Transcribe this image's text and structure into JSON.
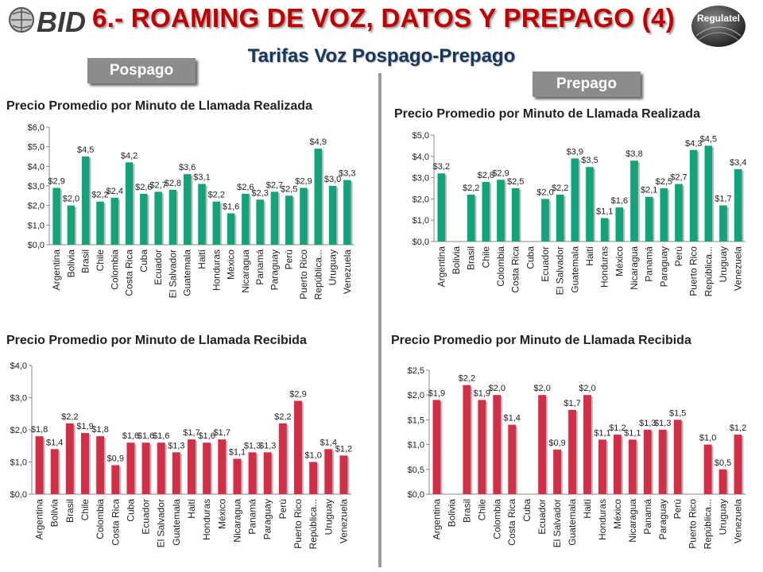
{
  "header": {
    "logo_text": "BID",
    "title": "6.- ROAMING DE VOZ, DATOS Y PREPAGO (4)",
    "subtitle": "Tarifas Voz Pospago-Prepago",
    "badge_text": "Regulatel"
  },
  "tags": {
    "pospago": "Pospago",
    "prepago": "Prepago"
  },
  "colors": {
    "green": "#13a37a",
    "red": "#d22e48",
    "title_red": "#c00000",
    "subtitle_navy": "#17375e"
  },
  "chart_data": [
    {
      "type": "bar",
      "title": "Precio Promedio por Minuto de Llamada Realizada",
      "categories": [
        "Argentina",
        "Bolivia",
        "Brasil",
        "Chile",
        "Colombia",
        "Costa Rica",
        "Cuba",
        "Ecuador",
        "El Salvador",
        "Guatemala",
        "Haití",
        "Honduras",
        "México",
        "Nicaragua",
        "Panamá",
        "Paraguay",
        "Perú",
        "Puerto Rico",
        "República...",
        "Uruguay",
        "Venezuela"
      ],
      "values": [
        2.9,
        2.0,
        4.5,
        2.2,
        2.4,
        4.2,
        2.6,
        2.7,
        2.8,
        3.6,
        3.1,
        2.2,
        1.6,
        2.6,
        2.3,
        2.7,
        2.5,
        2.9,
        4.9,
        3.0,
        3.3
      ],
      "labels": [
        "$2,9",
        "$2,0",
        "$4,5",
        "$2,2",
        "$2,4",
        "$4,2",
        "$2,6",
        "$2,7",
        "$2,8",
        "$3,6",
        "$3,1",
        "$2,2",
        "$1,6",
        "$2,6",
        "$2,3",
        "$2,7",
        "$2,5",
        "$2,9",
        "$4,9",
        "$3,0",
        "$3,3"
      ],
      "yticks": [
        "$0,0",
        "$1,0",
        "$2,0",
        "$3,0",
        "$4,0",
        "$5,0",
        "$6,0"
      ],
      "ylim": [
        0,
        6
      ],
      "color": "#13a37a"
    },
    {
      "type": "bar",
      "title": "Precio Promedio por Minuto de Llamada Realizada",
      "categories": [
        "Argentina",
        "Bolivia",
        "Brasil",
        "Chile",
        "Colombia",
        "Costa Rica",
        "Cuba",
        "Ecuador",
        "El Salvador",
        "Guatemala",
        "Haití",
        "Honduras",
        "México",
        "Nicaragua",
        "Panamá",
        "Paraguay",
        "Perú",
        "Puerto Rico",
        "República...",
        "Uruguay",
        "Venezuela"
      ],
      "values": [
        3.2,
        null,
        2.2,
        2.8,
        2.9,
        2.5,
        null,
        2.0,
        2.2,
        3.9,
        3.5,
        1.1,
        1.6,
        3.8,
        2.1,
        2.5,
        2.7,
        4.3,
        4.5,
        1.7,
        3.4
      ],
      "labels": [
        "$3,2",
        "",
        "$2,2",
        "$2,8",
        "$2,9",
        "$2,5",
        "",
        "$2,0",
        "$2,2",
        "$3,9",
        "$3,5",
        "$1,1",
        "$1,6",
        "$3,8",
        "$2,1",
        "$2,5",
        "$2,7",
        "$4,3",
        "$4,5",
        "$1,7",
        "$3,4"
      ],
      "yticks": [
        "$0,0",
        "$1,0",
        "$2,0",
        "$3,0",
        "$4,0",
        "$5,0"
      ],
      "ylim": [
        0,
        5
      ],
      "color": "#13a37a"
    },
    {
      "type": "bar",
      "title": "Precio Promedio por Minuto de Llamada Recibida",
      "categories": [
        "Argentina",
        "Bolivia",
        "Brasil",
        "Chile",
        "Colombia",
        "Costa Rica",
        "Cuba",
        "Ecuador",
        "El Salvador",
        "Guatemala",
        "Haití",
        "Honduras",
        "México",
        "Nicaragua",
        "Panamá",
        "Paraguay",
        "Perú",
        "Puerto Rico",
        "República...",
        "Uruguay",
        "Venezuela"
      ],
      "values": [
        1.8,
        1.4,
        2.2,
        1.9,
        1.8,
        0.9,
        1.6,
        1.6,
        1.6,
        1.3,
        1.7,
        1.6,
        1.7,
        1.1,
        1.3,
        1.3,
        2.2,
        2.9,
        1.0,
        1.4,
        1.2
      ],
      "labels": [
        "$1,8",
        "$1,4",
        "$2,2",
        "$1,9",
        "$1,8",
        "$0,9",
        "$1,6",
        "$1,6",
        "$1,6",
        "$1,3",
        "$1,7",
        "$1,6",
        "$1,7",
        "$1,1",
        "$1,3",
        "$1,3",
        "$2,2",
        "$2,9",
        "$1,0",
        "$1,4",
        "$1,2"
      ],
      "yticks": [
        "$0,0",
        "$1,0",
        "$2,0",
        "$3,0",
        "$4,0"
      ],
      "ylim": [
        0,
        4
      ],
      "color": "#d22e48"
    },
    {
      "type": "bar",
      "title": "Precio Promedio por Minuto de Llamada Recibida",
      "categories": [
        "Argentina",
        "Bolivia",
        "Brasil",
        "Chile",
        "Colombia",
        "Costa Rica",
        "Cuba",
        "Ecuador",
        "El Salvador",
        "Guatemala",
        "Haití",
        "Honduras",
        "México",
        "Nicaragua",
        "Panamá",
        "Paraguay",
        "Perú",
        "Puerto Rico",
        "República...",
        "Uruguay",
        "Venezuela"
      ],
      "values": [
        1.9,
        null,
        2.2,
        1.9,
        2.0,
        1.4,
        null,
        2.0,
        0.9,
        1.7,
        2.0,
        1.1,
        1.2,
        1.1,
        1.3,
        1.3,
        1.5,
        null,
        1.0,
        0.5,
        1.2
      ],
      "labels": [
        "$1,9",
        "",
        "$2,2",
        "$1,9",
        "$2,0",
        "$1,4",
        "",
        "$2,0",
        "$0,9",
        "$1,7",
        "$2,0",
        "$1,1",
        "$1,2",
        "$1,1",
        "$1,3",
        "$1,3",
        "$1,5",
        "",
        "$1,0",
        "$0,5",
        "$1,2"
      ],
      "yticks": [
        "$0,0",
        "$0,5",
        "$1,0",
        "$1,5",
        "$2,0",
        "$2,5"
      ],
      "ylim": [
        0,
        2.5
      ],
      "color": "#d22e48"
    }
  ]
}
